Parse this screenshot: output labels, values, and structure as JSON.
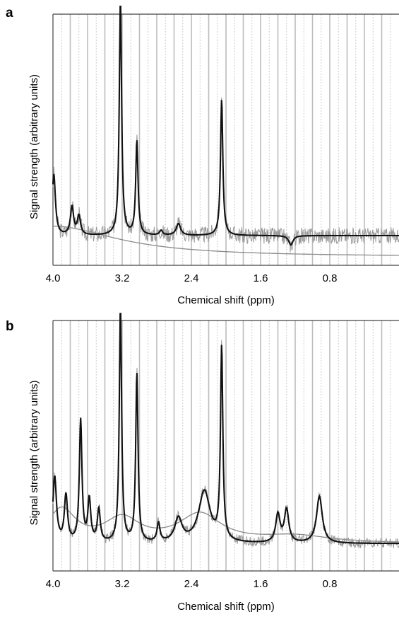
{
  "chart_data": [
    {
      "panel": "a",
      "type": "line",
      "xlabel": "Chemical shift (ppm)",
      "ylabel": "Signal strength (arbitrary units)",
      "xlim": [
        4.0,
        0.0
      ],
      "ylim": [
        0,
        100
      ],
      "x_reversed": true,
      "grid": true,
      "xticks": [
        "4.0",
        "3.2",
        "2.4",
        "1.6",
        "0.8"
      ],
      "xtick_values": [
        4.0,
        3.2,
        2.4,
        1.6,
        0.8
      ],
      "colors": {
        "fit": "#111111",
        "raw": "#9a9a9a",
        "baseline": "#8a8a8a",
        "grid_solid": "#bdbdbd",
        "grid_dashed": "#c8c8c8"
      },
      "series": [
        {
          "role": "fit",
          "baseline": 9,
          "noise": 0,
          "peaks": [
            [
              3.99,
              26,
              0.022
            ],
            [
              3.78,
              12,
              0.022
            ],
            [
              3.7,
              8,
              0.022
            ],
            [
              3.22,
              100,
              0.016
            ],
            [
              3.03,
              40,
              0.016
            ],
            [
              2.75,
              2,
              0.02
            ],
            [
              2.55,
              5,
              0.03
            ],
            [
              2.05,
              58,
              0.016
            ],
            [
              1.25,
              -4,
              0.03
            ]
          ]
        },
        {
          "role": "raw",
          "baseline": 9,
          "noise": 3.5,
          "peaks": [
            [
              3.99,
              26,
              0.022
            ],
            [
              3.78,
              12,
              0.022
            ],
            [
              3.7,
              8,
              0.022
            ],
            [
              3.22,
              100,
              0.016
            ],
            [
              3.03,
              40,
              0.016
            ],
            [
              2.75,
              2,
              0.02
            ],
            [
              2.55,
              5,
              0.03
            ],
            [
              2.05,
              58,
              0.016
            ],
            [
              1.25,
              -4,
              0.03
            ]
          ]
        },
        {
          "role": "baseline",
          "baseline": 0,
          "peaks": [
            [
              4.0,
              13,
              0.9
            ]
          ]
        }
      ]
    },
    {
      "panel": "b",
      "type": "line",
      "xlabel": "Chemical shift (ppm)",
      "ylabel": "Signal strength (arbitrary units)",
      "xlim": [
        4.0,
        0.0
      ],
      "ylim": [
        0,
        100
      ],
      "x_reversed": true,
      "grid": true,
      "xticks": [
        "4.0",
        "3.2",
        "2.4",
        "1.6",
        "0.8"
      ],
      "xtick_values": [
        4.0,
        3.2,
        2.4,
        1.6,
        0.8
      ],
      "colors": {
        "fit": "#111111",
        "raw": "#9a9a9a",
        "baseline": "#8a8a8a",
        "grid_solid": "#bdbdbd",
        "grid_dashed": "#c8c8c8"
      },
      "series": [
        {
          "role": "fit",
          "baseline": 8,
          "peaks": [
            [
              3.98,
              28,
              0.025
            ],
            [
              3.85,
              20,
              0.022
            ],
            [
              3.68,
              52,
              0.018
            ],
            [
              3.58,
              18,
              0.02
            ],
            [
              3.47,
              14,
              0.02
            ],
            [
              3.22,
              100,
              0.016
            ],
            [
              3.03,
              72,
              0.016
            ],
            [
              2.78,
              8,
              0.02
            ],
            [
              2.55,
              10,
              0.05
            ],
            [
              2.25,
              22,
              0.08
            ],
            [
              2.05,
              82,
              0.016
            ],
            [
              1.4,
              12,
              0.03
            ],
            [
              1.3,
              14,
              0.03
            ],
            [
              0.92,
              20,
              0.04
            ]
          ]
        },
        {
          "role": "raw",
          "baseline": 8,
          "noise": 2.2,
          "peaks": [
            [
              3.98,
              28,
              0.025
            ],
            [
              3.85,
              20,
              0.022
            ],
            [
              3.68,
              52,
              0.018
            ],
            [
              3.58,
              18,
              0.02
            ],
            [
              3.47,
              14,
              0.02
            ],
            [
              3.22,
              100,
              0.016
            ],
            [
              3.03,
              72,
              0.016
            ],
            [
              2.78,
              8,
              0.02
            ],
            [
              2.55,
              10,
              0.05
            ],
            [
              2.25,
              22,
              0.08
            ],
            [
              2.05,
              82,
              0.016
            ],
            [
              1.4,
              12,
              0.03
            ],
            [
              1.3,
              14,
              0.03
            ],
            [
              0.92,
              20,
              0.04
            ]
          ]
        },
        {
          "role": "baseline",
          "baseline": 8,
          "peaks": [
            [
              3.9,
              14,
              0.2
            ],
            [
              3.2,
              10,
              0.25
            ],
            [
              2.3,
              12,
              0.3
            ],
            [
              1.2,
              3,
              0.5
            ]
          ]
        }
      ]
    }
  ]
}
